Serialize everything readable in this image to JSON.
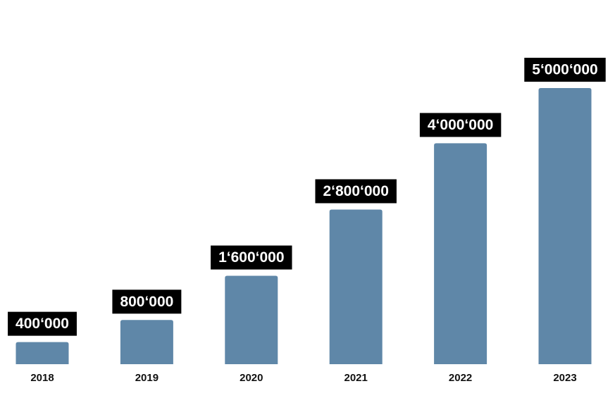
{
  "chart_data": {
    "type": "bar",
    "categories": [
      "2018",
      "2019",
      "2020",
      "2021",
      "2022",
      "2023"
    ],
    "values": [
      400000,
      800000,
      1600000,
      2800000,
      4000000,
      5000000
    ],
    "value_labels": [
      "400‘000",
      "800‘000",
      "1‘600‘000",
      "2‘800‘000",
      "4‘000‘000",
      "5‘000‘000"
    ],
    "color": "#5f87a8"
  }
}
